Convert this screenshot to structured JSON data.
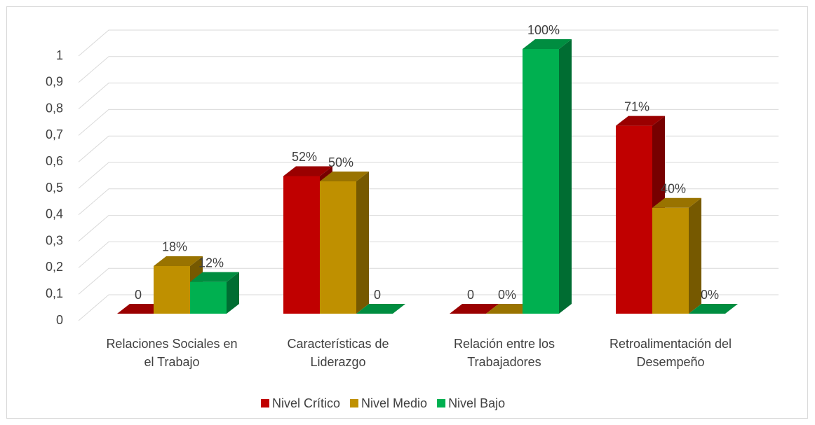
{
  "chart_data": {
    "type": "bar3d",
    "categories": [
      "Relaciones Sociales en el Trabajo",
      "Características de Liderazgo",
      "Relación entre los Trabajadores",
      "Retroalimentación del Desempeño"
    ],
    "series": [
      {
        "name": "Nivel Crítico",
        "color": "#c00000",
        "values": [
          0,
          0.52,
          0,
          0.71
        ],
        "value_labels": [
          "0",
          "52%",
          "0",
          "71%"
        ]
      },
      {
        "name": "Nivel Medio",
        "color": "#bf9000",
        "values": [
          0.18,
          0.5,
          0,
          0.4
        ],
        "value_labels": [
          "18%",
          "50%",
          "0%",
          "40%"
        ]
      },
      {
        "name": "Nivel Bajo",
        "color": "#00b050",
        "values": [
          0.12,
          0,
          1,
          0
        ],
        "value_labels": [
          "12%",
          "0",
          "100%",
          "0%"
        ]
      }
    ],
    "ylim": [
      0,
      1
    ],
    "yticks": [
      0,
      {
        "value": 0.1,
        "label": "0,1"
      },
      {
        "value": 0.2,
        "label": "0,2"
      },
      {
        "value": 0.3,
        "label": "0,3"
      },
      {
        "value": 0.4,
        "label": "0,4"
      },
      {
        "value": 0.5,
        "label": "0,5"
      },
      {
        "value": 0.6,
        "label": "0,6"
      },
      {
        "value": 0.7,
        "label": "0,7"
      },
      {
        "value": 0.8,
        "label": "0,8"
      },
      {
        "value": 0.9,
        "label": "0,9"
      },
      1
    ],
    "grid": true,
    "legend": "bottom"
  }
}
